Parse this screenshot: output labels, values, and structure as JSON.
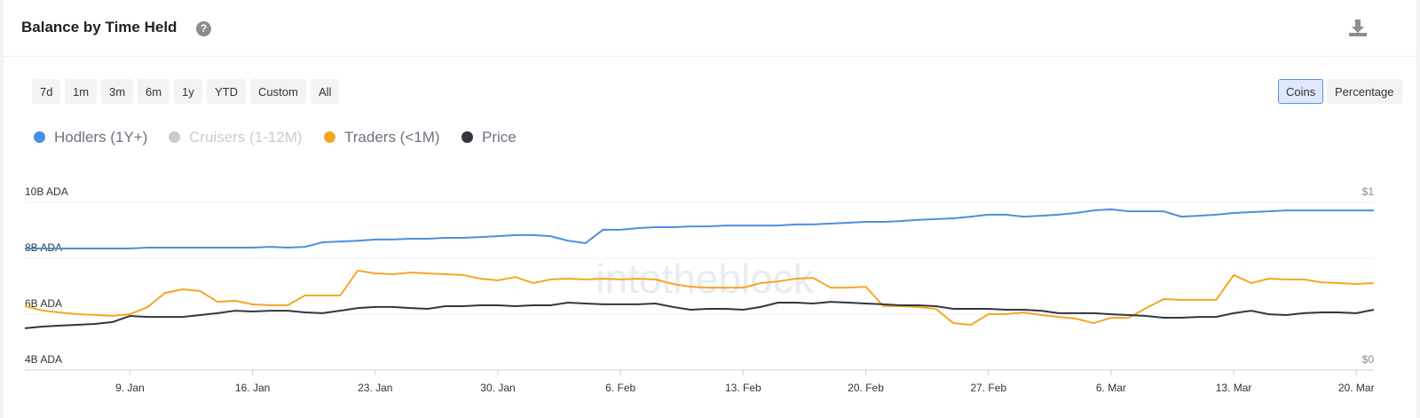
{
  "header": {
    "title": "Balance by Time Held"
  },
  "ranges": [
    "7d",
    "1m",
    "3m",
    "6m",
    "1y",
    "YTD",
    "Custom",
    "All"
  ],
  "units": {
    "options": [
      "Coins",
      "Percentage"
    ],
    "active": 0
  },
  "watermark": "intotheblock",
  "chart_data": {
    "type": "line",
    "categories": [
      "",
      null,
      null,
      null,
      null,
      null,
      "9. Jan",
      null,
      null,
      null,
      null,
      null,
      null,
      "16. Jan",
      null,
      null,
      null,
      null,
      null,
      null,
      "23. Jan",
      null,
      null,
      null,
      null,
      null,
      null,
      "30. Jan",
      null,
      null,
      null,
      null,
      null,
      null,
      "6. Feb",
      null,
      null,
      null,
      null,
      null,
      null,
      "13. Feb",
      null,
      null,
      null,
      null,
      null,
      null,
      "20. Feb",
      null,
      null,
      null,
      null,
      null,
      null,
      "27. Feb",
      null,
      null,
      null,
      null,
      null,
      null,
      "6. Mar",
      null,
      null,
      null,
      null,
      null,
      null,
      "13. Mar",
      null,
      null,
      null,
      null,
      null,
      null,
      "20. Mar",
      null
    ],
    "ylim": [
      4,
      10
    ],
    "yticks": [
      {
        "value": 4,
        "label": "4B ADA"
      },
      {
        "value": 6,
        "label": "6B ADA"
      },
      {
        "value": 8,
        "label": "8B ADA"
      },
      {
        "value": 10,
        "label": "10B ADA"
      }
    ],
    "y2lim": [
      0,
      1
    ],
    "y2ticks": [
      {
        "value": 0,
        "label": "$0"
      },
      {
        "value": 1,
        "label": "$1"
      }
    ],
    "grid": true,
    "series": [
      {
        "name": "Hodlers (1Y+)",
        "color": "#4a8fe0",
        "values": [
          8.35,
          8.35,
          8.35,
          8.35,
          8.35,
          8.35,
          8.35,
          8.38,
          8.38,
          8.38,
          8.38,
          8.38,
          8.38,
          8.38,
          8.41,
          8.38,
          8.41,
          8.57,
          8.6,
          8.63,
          8.67,
          8.67,
          8.7,
          8.7,
          8.73,
          8.73,
          8.76,
          8.79,
          8.83,
          8.83,
          8.79,
          8.63,
          8.54,
          9.02,
          9.02,
          9.08,
          9.11,
          9.11,
          9.14,
          9.14,
          9.17,
          9.17,
          9.17,
          9.17,
          9.21,
          9.21,
          9.24,
          9.27,
          9.3,
          9.3,
          9.33,
          9.37,
          9.4,
          9.43,
          9.49,
          9.56,
          9.56,
          9.49,
          9.52,
          9.56,
          9.62,
          9.71,
          9.75,
          9.68,
          9.68,
          9.68,
          9.49,
          9.52,
          9.56,
          9.62,
          9.65,
          9.68,
          9.71,
          9.71,
          9.71,
          9.71,
          9.71,
          9.71
        ]
      },
      {
        "name": "Cruisers (1-12M)",
        "color": "#cccccc",
        "hidden": true
      },
      {
        "name": "Traders (<1M)",
        "color": "#f5a623",
        "values": [
          6.29,
          6.13,
          6.06,
          6.0,
          5.97,
          5.94,
          6.0,
          6.25,
          6.76,
          6.89,
          6.83,
          6.44,
          6.48,
          6.35,
          6.32,
          6.32,
          6.67,
          6.67,
          6.67,
          7.56,
          7.46,
          7.43,
          7.49,
          7.46,
          7.43,
          7.4,
          7.27,
          7.21,
          7.33,
          7.11,
          7.24,
          7.27,
          7.24,
          7.27,
          7.24,
          7.27,
          7.24,
          7.08,
          6.98,
          6.95,
          6.95,
          6.95,
          7.11,
          7.17,
          7.27,
          7.3,
          6.95,
          6.95,
          6.98,
          6.29,
          6.29,
          6.25,
          6.19,
          5.68,
          5.62,
          6.0,
          6.0,
          6.06,
          5.97,
          5.9,
          5.84,
          5.68,
          5.87,
          5.87,
          6.22,
          6.54,
          6.51,
          6.51,
          6.51,
          7.4,
          7.11,
          7.27,
          7.24,
          7.24,
          7.14,
          7.11,
          7.08,
          7.11
        ]
      },
      {
        "name": "Price",
        "color": "#33373d",
        "axis": "y2",
        "values": [
          0.249,
          0.259,
          0.265,
          0.27,
          0.275,
          0.286,
          0.323,
          0.317,
          0.317,
          0.317,
          0.328,
          0.339,
          0.354,
          0.349,
          0.354,
          0.354,
          0.344,
          0.339,
          0.354,
          0.37,
          0.376,
          0.376,
          0.37,
          0.365,
          0.381,
          0.381,
          0.386,
          0.386,
          0.381,
          0.386,
          0.386,
          0.402,
          0.397,
          0.392,
          0.392,
          0.392,
          0.397,
          0.376,
          0.36,
          0.365,
          0.365,
          0.36,
          0.376,
          0.402,
          0.402,
          0.397,
          0.407,
          0.402,
          0.397,
          0.392,
          0.386,
          0.386,
          0.381,
          0.365,
          0.365,
          0.365,
          0.36,
          0.36,
          0.354,
          0.339,
          0.339,
          0.339,
          0.333,
          0.328,
          0.323,
          0.312,
          0.312,
          0.317,
          0.317,
          0.339,
          0.354,
          0.333,
          0.328,
          0.339,
          0.344,
          0.344,
          0.339,
          0.36
        ]
      }
    ]
  }
}
